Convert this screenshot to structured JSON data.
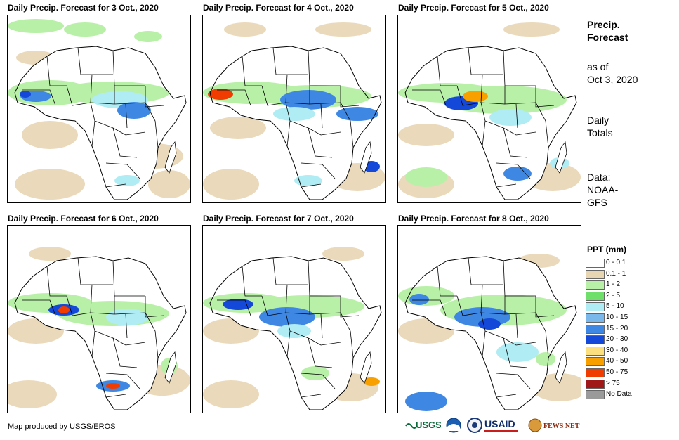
{
  "panels": [
    {
      "title": "Daily Precip. Forecast for 3 Oct., 2020"
    },
    {
      "title": "Daily Precip. Forecast for 4 Oct., 2020"
    },
    {
      "title": "Daily Precip. Forecast for 5 Oct., 2020"
    },
    {
      "title": "Daily Precip. Forecast for 6 Oct., 2020"
    },
    {
      "title": "Daily Precip. Forecast for 7 Oct., 2020"
    },
    {
      "title": "Daily Precip. Forecast for 8 Oct., 2020"
    }
  ],
  "sidebar": {
    "heading_line1": "Precip.",
    "heading_line2": "Forecast",
    "asof_line1": "as of",
    "asof_line2": "Oct 3, 2020",
    "totals_line1": "Daily",
    "totals_line2": "Totals",
    "source_line1": "Data:",
    "source_line2": "NOAA-",
    "source_line3": "GFS"
  },
  "legend": {
    "title": "PPT (mm)",
    "items": [
      {
        "label": "0 - 0.1",
        "color": "#ffffff"
      },
      {
        "label": "0.1 - 1",
        "color": "#e8d5b2"
      },
      {
        "label": "1 - 2",
        "color": "#b8f0a8"
      },
      {
        "label": "2 - 5",
        "color": "#6ee06a"
      },
      {
        "label": "5 - 10",
        "color": "#b0ecf4"
      },
      {
        "label": "10 - 15",
        "color": "#7ab8ec"
      },
      {
        "label": "15 - 20",
        "color": "#3e88e4"
      },
      {
        "label": "20 - 30",
        "color": "#1448d8"
      },
      {
        "label": "30 - 40",
        "color": "#fce080"
      },
      {
        "label": "40 - 50",
        "color": "#f8a000"
      },
      {
        "label": "50 - 75",
        "color": "#f03c00"
      },
      {
        "label": "> 75",
        "color": "#a01818"
      },
      {
        "label": "No Data",
        "color": "#9a9a9a"
      }
    ]
  },
  "credit": "Map produced by USGS/EROS",
  "logos": {
    "usgs": "USGS",
    "usaid": "USAID",
    "fewsnet": "FEWS NET"
  }
}
